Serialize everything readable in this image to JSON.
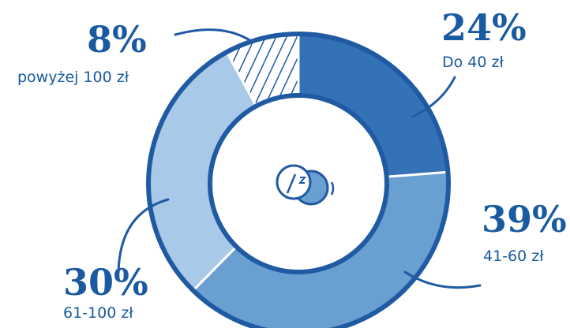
{
  "chart_data": {
    "type": "pie",
    "slices": [
      {
        "value": 24,
        "percent_label": "24%",
        "label": "Do 40 zł",
        "color": "#3472b8",
        "pattern": "solid"
      },
      {
        "value": 39,
        "percent_label": "39%",
        "label": "41-60 zł",
        "color": "#6a9fd2",
        "pattern": "solid"
      },
      {
        "value": 30,
        "percent_label": "30%",
        "label": "61-100 zł",
        "color": "#a9c9e8",
        "pattern": "solid"
      },
      {
        "value": 8,
        "percent_label": "8%",
        "label": "powyżej 100 zł",
        "color": "#ffffff",
        "pattern": "hatched"
      }
    ],
    "center_icon": "coins-icon",
    "colors": {
      "text": "#1a5aa0",
      "outline": "#1f5aa3"
    }
  }
}
